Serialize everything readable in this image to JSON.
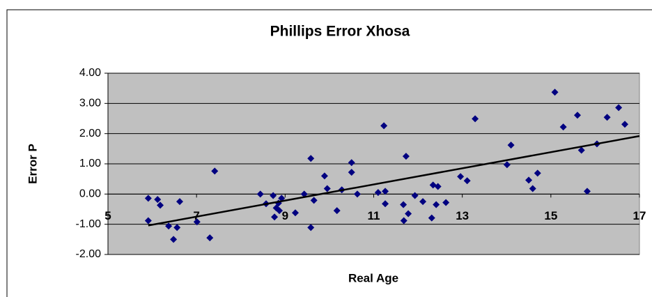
{
  "chart_data": {
    "type": "scatter",
    "title": "Phillips Error Xhosa",
    "x_label": "Real Age",
    "y_label": "Error P",
    "series": [
      {
        "name": "Error P",
        "color": "#000080",
        "x": [
          5.91,
          5.91,
          6.12,
          6.18,
          6.37,
          6.48,
          6.56,
          6.62,
          7.01,
          7.3,
          7.41,
          8.44,
          8.57,
          8.73,
          8.76,
          8.8,
          8.85,
          8.87,
          8.92,
          9.23,
          9.43,
          9.58,
          9.58,
          9.65,
          9.89,
          9.95,
          10.17,
          10.28,
          10.5,
          10.5,
          10.63,
          11.1,
          11.23,
          11.26,
          11.26,
          11.67,
          11.68,
          11.73,
          11.78,
          11.93,
          12.11,
          12.31,
          12.34,
          12.41,
          12.45,
          12.63,
          12.96,
          13.11,
          13.29,
          14.01,
          14.1,
          14.5,
          14.59,
          14.7,
          15.09,
          15.28,
          15.6,
          15.69,
          15.82,
          16.04,
          16.27,
          16.53,
          16.67
        ],
        "values": [
          -0.88,
          -0.14,
          -0.18,
          -0.37,
          -1.06,
          -1.5,
          -1.11,
          -0.25,
          -0.92,
          -1.45,
          0.76,
          0.0,
          -0.32,
          -0.05,
          -0.76,
          -0.46,
          -0.3,
          -0.55,
          -0.14,
          -0.62,
          0.0,
          1.18,
          -1.11,
          -0.21,
          0.6,
          0.18,
          -0.55,
          0.14,
          1.04,
          0.72,
          0.0,
          0.05,
          2.26,
          0.09,
          -0.32,
          -0.35,
          -0.88,
          1.25,
          -0.65,
          -0.05,
          -0.25,
          -0.79,
          0.3,
          -0.35,
          0.25,
          -0.28,
          0.58,
          0.44,
          2.49,
          0.97,
          1.62,
          0.46,
          0.18,
          0.69,
          3.37,
          2.22,
          2.61,
          1.45,
          0.09,
          1.66,
          2.54,
          2.86,
          2.31
        ]
      }
    ],
    "trendline": {
      "color": "#000000",
      "x": [
        5.91,
        17
      ],
      "values": [
        -1.04,
        1.92
      ]
    },
    "xlim": [
      5,
      17
    ],
    "xticks": [
      5,
      7,
      9,
      11,
      13,
      15,
      17
    ],
    "ylim": [
      -2,
      4
    ],
    "yticks": [
      {
        "value": -2,
        "label": "-2.00"
      },
      {
        "value": -1,
        "label": "-1.00"
      },
      {
        "value": 0,
        "label": "0.00"
      },
      {
        "value": 1,
        "label": "1.00"
      },
      {
        "value": 2,
        "label": "2.00"
      },
      {
        "value": 3,
        "label": "3.00"
      },
      {
        "value": 4,
        "label": "4.00"
      }
    ],
    "grid": true,
    "plot_background": "#c0c0c0"
  }
}
